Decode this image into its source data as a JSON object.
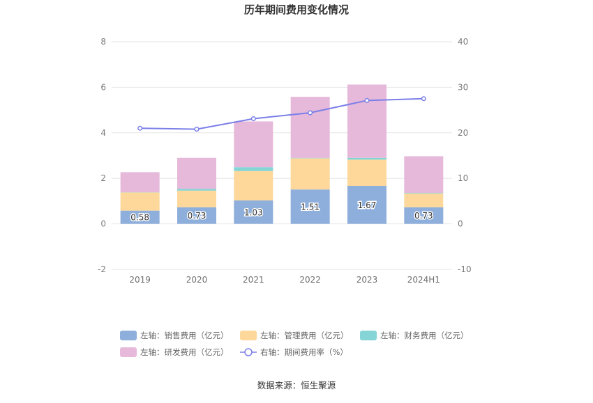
{
  "chart_data": {
    "type": "bar",
    "title": "历年期间费用变化情况",
    "categories": [
      "2019",
      "2020",
      "2021",
      "2022",
      "2023",
      "2024H1"
    ],
    "left_axis": {
      "min": -2,
      "max": 8,
      "ticks": [
        "-2",
        "0",
        "2",
        "4",
        "6",
        "8"
      ]
    },
    "right_axis": {
      "min": -10,
      "max": 40,
      "ticks": [
        "-10",
        "0",
        "10",
        "20",
        "30",
        "40"
      ]
    },
    "series": [
      {
        "name": "左轴：销售费用（亿元）",
        "axis": "left",
        "type": "bar",
        "color": "#8eaedb",
        "values": [
          0.58,
          0.73,
          1.03,
          1.51,
          1.67,
          0.73
        ],
        "labels": [
          "0.58",
          "0.73",
          "1.03",
          "1.51",
          "1.67",
          "0.73"
        ]
      },
      {
        "name": "左轴：管理费用（亿元）",
        "axis": "left",
        "type": "bar",
        "color": "#fdd89a",
        "values": [
          0.8,
          0.73,
          1.29,
          1.37,
          1.15,
          0.6
        ]
      },
      {
        "name": "左轴：财务费用（亿元）",
        "axis": "left",
        "type": "bar",
        "color": "#85d4d6",
        "values": [
          0.01,
          0.08,
          0.17,
          0.02,
          0.08,
          0.03
        ]
      },
      {
        "name": "左轴：研发费用（亿元）",
        "axis": "left",
        "type": "bar",
        "color": "#e6b9da",
        "values": [
          0.88,
          1.36,
          2.01,
          2.68,
          3.22,
          1.61
        ]
      },
      {
        "name": "右轴：期间费用率（%）",
        "axis": "right",
        "type": "line",
        "color": "#7b7fe8",
        "values": [
          21.0,
          20.8,
          23.1,
          24.4,
          27.1,
          27.5
        ]
      }
    ],
    "source": "数据来源：恒生聚源"
  }
}
